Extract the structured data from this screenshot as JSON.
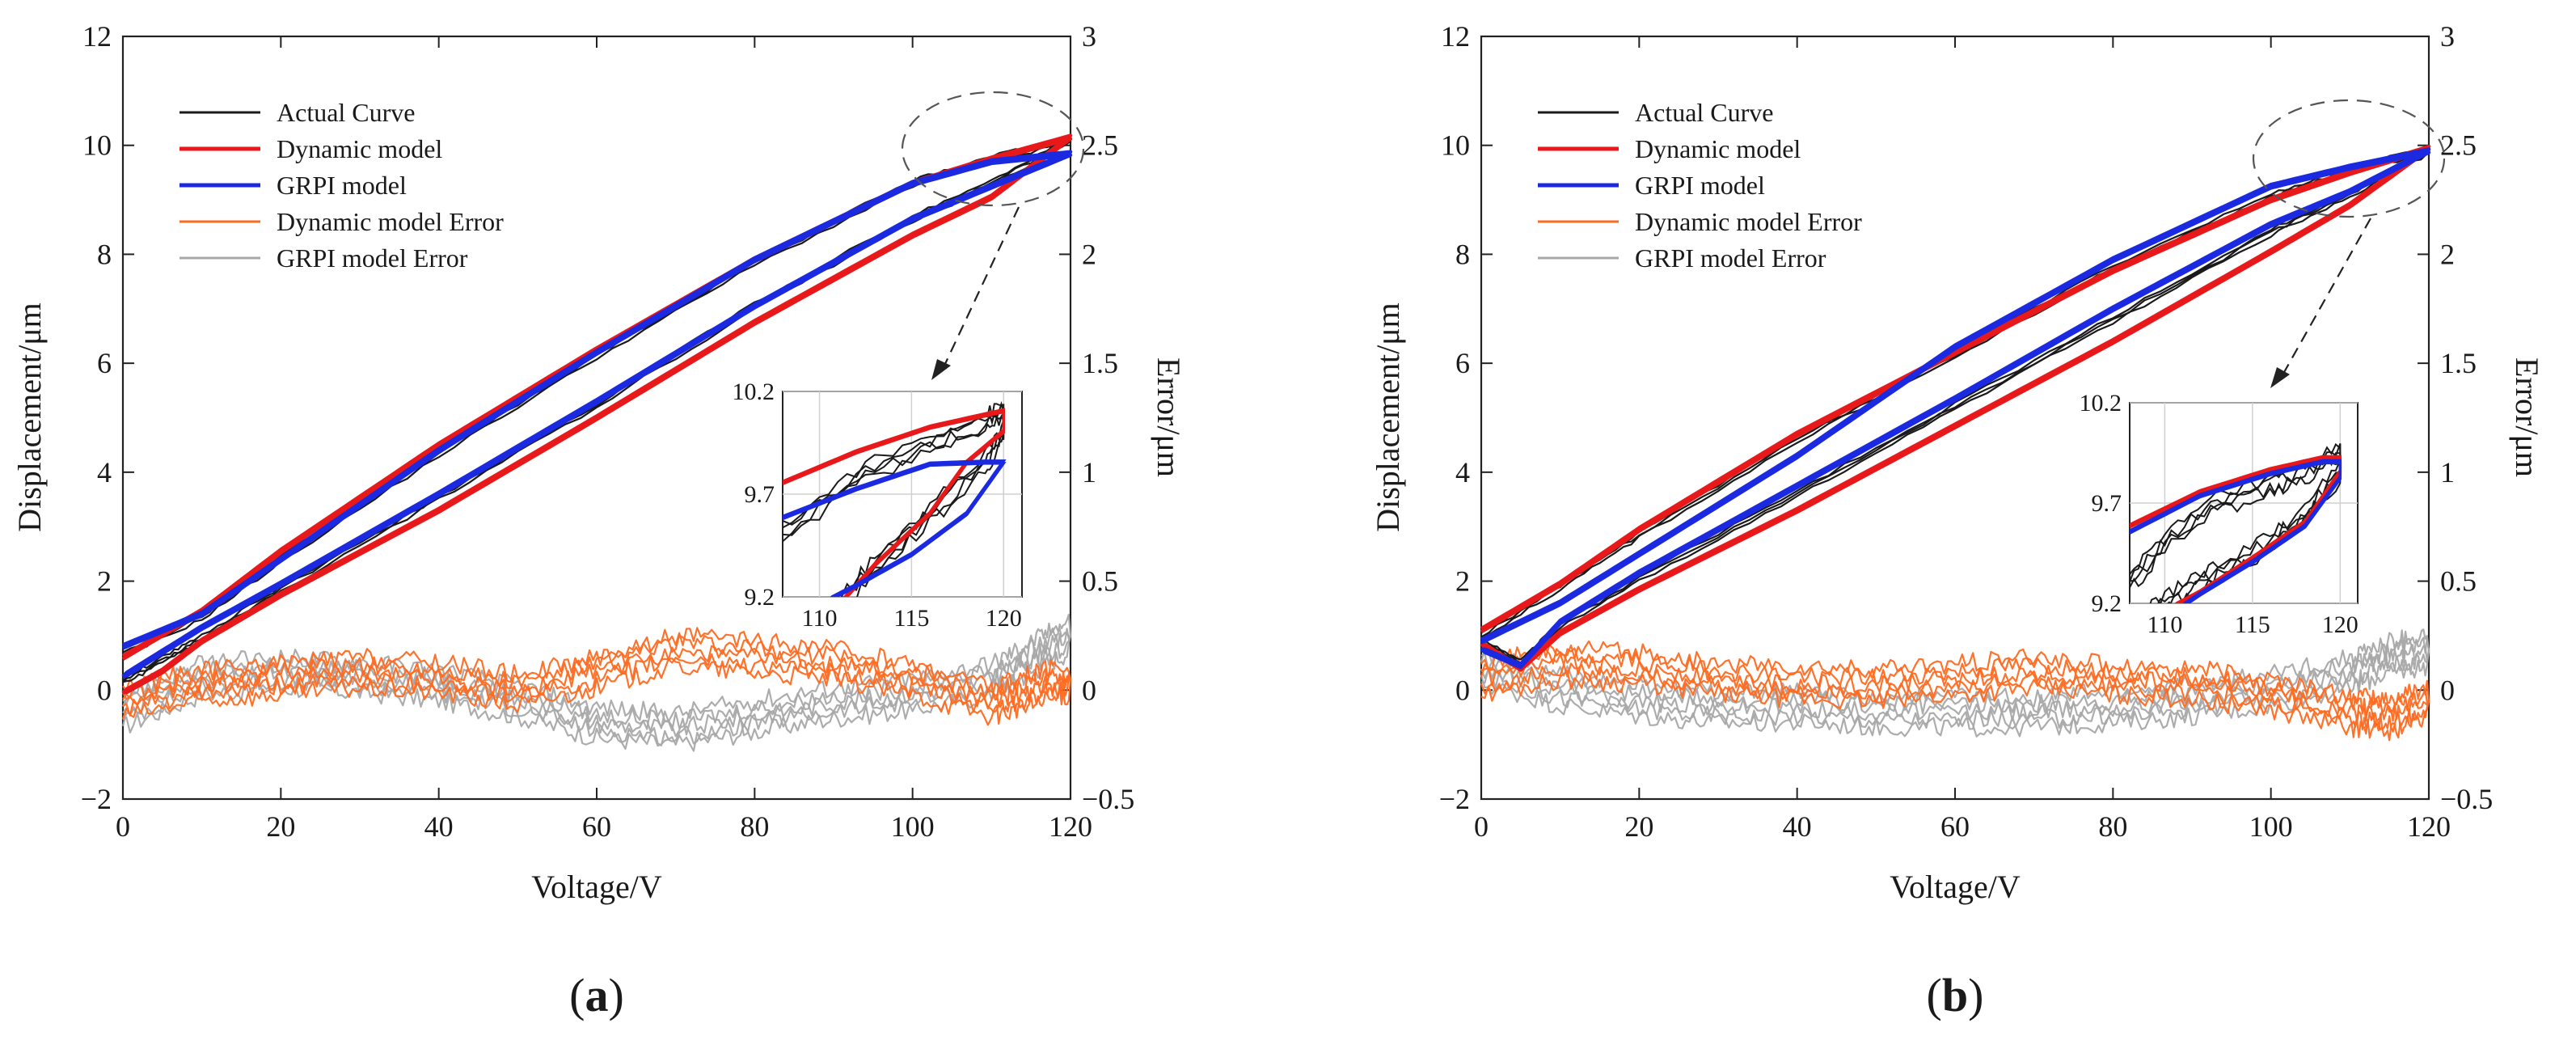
{
  "figure": {
    "panel_labels": [
      {
        "open": "(",
        "letter": "a",
        "close": ")"
      },
      {
        "open": "(",
        "letter": "b",
        "close": ")"
      }
    ]
  },
  "legend": [
    {
      "label": "Actual Curve",
      "color": "#1a1a1a"
    },
    {
      "label": "Dynamic model",
      "color": "#e8191b"
    },
    {
      "label": "GRPI model",
      "color": "#1b2ae0"
    },
    {
      "label": "Dynamic model Error",
      "color": "#ff6a20"
    },
    {
      "label": "GRPI model Error",
      "color": "#a8a8a8"
    }
  ],
  "chart_data": [
    {
      "panel": "a",
      "type": "line",
      "xlabel": "Voltage/V",
      "ylabel": "Displacement/μm",
      "ylabel_right": "Error/μm",
      "xlim": [
        0,
        120
      ],
      "ylim": [
        -2,
        12
      ],
      "ylim_right": [
        -0.5,
        3
      ],
      "xticks": [
        0,
        20,
        40,
        60,
        80,
        100,
        120
      ],
      "yticks": [
        -2,
        0,
        2,
        4,
        6,
        8,
        10,
        12
      ],
      "yticks_right": [
        -0.5,
        0,
        0.5,
        1,
        1.5,
        2,
        2.5,
        3
      ],
      "ytick_labels": [
        "−2",
        "0",
        "2",
        "4",
        "6",
        "8",
        "10",
        "12"
      ],
      "ytick_labels_right": [
        "−0.5",
        "0",
        "0.5",
        "1",
        "1.5",
        "2",
        "2.5",
        "3"
      ],
      "legend_position": "top-left",
      "annotation": "dashed ellipse around the loop tip near 120 V with arrow to zoomed inset",
      "series": [
        {
          "name": "Actual Curve",
          "x": [
            0,
            10,
            20,
            40,
            60,
            80,
            100,
            110,
            120,
            110,
            100,
            80,
            60,
            40,
            20,
            10,
            5,
            0
          ],
          "y": [
            0.65,
            1.35,
            2.4,
            4.35,
            6.15,
            7.85,
            9.3,
            9.75,
            10.1,
            9.3,
            8.65,
            7.05,
            5.25,
            3.55,
            1.85,
            0.95,
            0.55,
            0.15
          ]
        },
        {
          "name": "Dynamic model",
          "x": [
            0,
            10,
            20,
            40,
            60,
            80,
            100,
            110,
            120,
            110,
            100,
            80,
            60,
            40,
            20,
            10,
            5,
            0
          ],
          "y": [
            0.6,
            1.45,
            2.55,
            4.5,
            6.25,
            7.9,
            9.3,
            9.75,
            10.15,
            9.05,
            8.35,
            6.75,
            5.0,
            3.3,
            1.75,
            0.9,
            0.35,
            -0.05
          ]
        },
        {
          "name": "GRPI model",
          "x": [
            0,
            10,
            20,
            40,
            60,
            80,
            100,
            110,
            120,
            110,
            100,
            80,
            60,
            40,
            20,
            10,
            5,
            0
          ],
          "y": [
            0.8,
            1.4,
            2.4,
            4.4,
            6.2,
            7.9,
            9.3,
            9.7,
            9.85,
            9.25,
            8.65,
            7.05,
            5.3,
            3.6,
            1.95,
            1.15,
            0.7,
            0.25
          ]
        },
        {
          "name": "Dynamic model Error",
          "x": [
            0,
            10,
            20,
            30,
            40,
            50,
            60,
            70,
            80,
            90,
            100,
            110,
            115,
            120
          ],
          "y": [
            -0.05,
            0.02,
            0.05,
            0.08,
            0.06,
            0.0,
            0.08,
            0.18,
            0.15,
            0.12,
            0.05,
            -0.05,
            0.0,
            0.05
          ]
        },
        {
          "name": "GRPI model Error",
          "x": [
            0,
            10,
            20,
            30,
            40,
            50,
            60,
            70,
            80,
            90,
            100,
            110,
            115,
            120
          ],
          "y": [
            -0.1,
            0.05,
            0.08,
            0.06,
            0.02,
            -0.05,
            -0.15,
            -0.18,
            -0.12,
            -0.06,
            -0.02,
            0.05,
            0.15,
            0.25
          ]
        }
      ],
      "inset": {
        "xlim": [
          108,
          121
        ],
        "ylim": [
          9.2,
          10.2
        ],
        "xticks": [
          110,
          115,
          120
        ],
        "yticks": [
          9.2,
          9.7,
          10.2
        ],
        "ytick_labels": [
          "9.2",
          "9.7",
          "10.2"
        ],
        "series": [
          {
            "name": "Actual Curve",
            "x": [
              108,
              112,
              116,
              119,
              120,
              120,
              119,
              116,
              113,
              111
            ],
            "y": [
              9.5,
              9.78,
              9.95,
              10.05,
              10.1,
              10.0,
              9.85,
              9.6,
              9.35,
              9.15
            ]
          },
          {
            "name": "Dynamic model",
            "x": [
              108,
              112,
              116,
              120,
              120,
              118,
              116,
              113,
              111
            ],
            "y": [
              9.75,
              9.9,
              10.02,
              10.1,
              10.0,
              9.85,
              9.6,
              9.35,
              9.15
            ]
          },
          {
            "name": "GRPI model",
            "x": [
              108,
              112,
              116,
              119,
              120,
              118,
              115,
              112,
              110.5
            ],
            "y": [
              9.58,
              9.72,
              9.84,
              9.85,
              9.85,
              9.6,
              9.4,
              9.25,
              9.18
            ]
          }
        ]
      }
    },
    {
      "panel": "b",
      "type": "line",
      "xlabel": "Voltage/V",
      "ylabel": "Displacement/μm",
      "ylabel_right": "Error/μm",
      "xlim": [
        0,
        120
      ],
      "ylim": [
        -2,
        12
      ],
      "ylim_right": [
        -0.5,
        3
      ],
      "xticks": [
        0,
        20,
        40,
        60,
        80,
        100,
        120
      ],
      "yticks": [
        -2,
        0,
        2,
        4,
        6,
        8,
        10,
        12
      ],
      "yticks_right": [
        -0.5,
        0,
        0.5,
        1,
        1.5,
        2,
        2.5,
        3
      ],
      "ytick_labels": [
        "−2",
        "0",
        "2",
        "4",
        "6",
        "8",
        "10",
        "12"
      ],
      "ytick_labels_right": [
        "−0.5",
        "0",
        "0.5",
        "1",
        "1.5",
        "2",
        "2.5",
        "3"
      ],
      "legend_position": "top-left",
      "annotation": "dashed ellipse around the loop tip near 120 V with arrow to zoomed inset",
      "series": [
        {
          "name": "Actual Curve",
          "x": [
            0,
            10,
            20,
            40,
            60,
            80,
            100,
            110,
            120,
            110,
            100,
            80,
            60,
            40,
            20,
            10,
            5,
            0
          ],
          "y": [
            1.0,
            1.9,
            2.85,
            4.6,
            6.15,
            7.75,
            9.05,
            9.55,
            9.9,
            9.1,
            8.4,
            6.8,
            5.2,
            3.6,
            2.05,
            1.2,
            0.5,
            0.9
          ]
        },
        {
          "name": "Dynamic model",
          "x": [
            0,
            10,
            20,
            40,
            60,
            80,
            100,
            110,
            120,
            110,
            100,
            80,
            60,
            40,
            20,
            10,
            5,
            0
          ],
          "y": [
            1.1,
            1.95,
            2.95,
            4.7,
            6.2,
            7.7,
            9.0,
            9.5,
            9.95,
            8.9,
            8.05,
            6.4,
            4.85,
            3.3,
            1.85,
            1.05,
            0.4,
            0.85
          ]
        },
        {
          "name": "GRPI model",
          "x": [
            0,
            10,
            20,
            40,
            60,
            80,
            100,
            110,
            120,
            110,
            100,
            80,
            60,
            40,
            20,
            10,
            5,
            0
          ],
          "y": [
            0.9,
            1.6,
            2.5,
            4.3,
            6.3,
            7.9,
            9.25,
            9.6,
            9.9,
            9.15,
            8.55,
            7.0,
            5.35,
            3.75,
            2.15,
            1.25,
            0.45,
            0.75
          ]
        },
        {
          "name": "Dynamic model Error",
          "x": [
            0,
            10,
            20,
            30,
            40,
            50,
            60,
            70,
            80,
            90,
            100,
            110,
            115,
            120
          ],
          "y": [
            0.05,
            0.12,
            0.1,
            0.05,
            0.03,
            0.02,
            0.05,
            0.08,
            0.05,
            0.03,
            -0.02,
            -0.1,
            -0.12,
            -0.05
          ]
        },
        {
          "name": "GRPI model Error",
          "x": [
            0,
            10,
            20,
            30,
            40,
            50,
            60,
            70,
            80,
            90,
            100,
            110,
            115,
            120
          ],
          "y": [
            0.1,
            0.0,
            -0.05,
            -0.08,
            -0.08,
            -0.1,
            -0.1,
            -0.1,
            -0.08,
            -0.05,
            0.0,
            0.08,
            0.15,
            0.18
          ]
        }
      ],
      "inset": {
        "xlim": [
          108,
          121
        ],
        "ylim": [
          9.2,
          10.2
        ],
        "xticks": [
          110,
          115,
          120
        ],
        "yticks": [
          9.2,
          9.7,
          10.2
        ],
        "ytick_labels": [
          "9.2",
          "9.7",
          "10.2"
        ],
        "series": [
          {
            "name": "Actual Curve",
            "x": [
              108,
              110,
              113,
              116,
              118,
              120,
              120,
              118,
              116,
              113,
              111,
              109
            ],
            "y": [
              9.3,
              9.5,
              9.7,
              9.78,
              9.85,
              9.95,
              9.85,
              9.65,
              9.5,
              9.35,
              9.25,
              9.15
            ]
          },
          {
            "name": "Dynamic model",
            "x": [
              108,
              112,
              116,
              119,
              120,
              120,
              118,
              115,
              112,
              110.5
            ],
            "y": [
              9.58,
              9.75,
              9.86,
              9.92,
              9.92,
              9.85,
              9.6,
              9.42,
              9.25,
              9.18
            ]
          },
          {
            "name": "GRPI model",
            "x": [
              108,
              112,
              116,
              119,
              120,
              120,
              118,
              115,
              112,
              111
            ],
            "y": [
              9.55,
              9.73,
              9.84,
              9.9,
              9.9,
              9.82,
              9.58,
              9.4,
              9.24,
              9.18
            ]
          }
        ]
      }
    }
  ]
}
